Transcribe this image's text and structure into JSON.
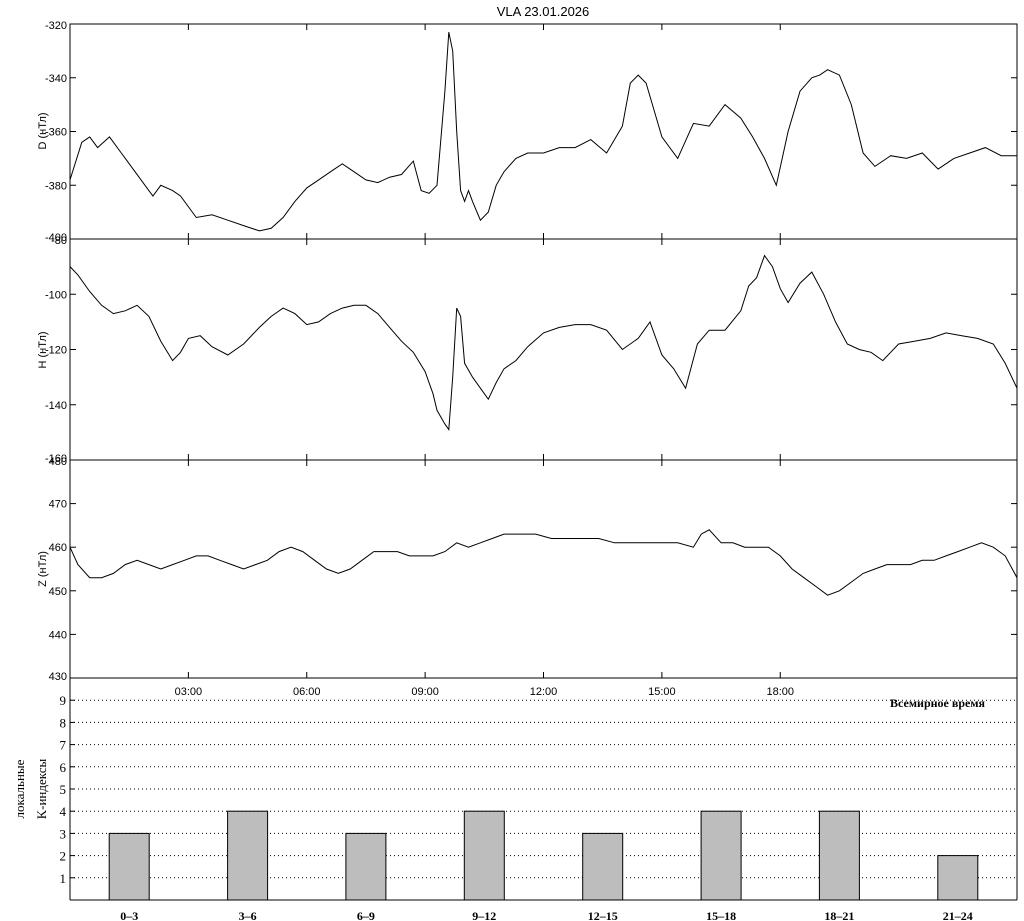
{
  "title": "VLA   23.01.2026",
  "chart_data": [
    {
      "type": "line",
      "ylabel": "D (нТл)",
      "ylim": [
        -400,
        -320
      ],
      "yticks": [
        -400,
        -380,
        -360,
        -340,
        -320
      ],
      "x": [
        0,
        0.3,
        0.5,
        0.7,
        1.0,
        1.3,
        1.6,
        1.9,
        2.1,
        2.3,
        2.6,
        2.8,
        3.2,
        3.6,
        4.0,
        4.4,
        4.8,
        5.1,
        5.4,
        5.7,
        6.0,
        6.3,
        6.6,
        6.9,
        7.2,
        7.5,
        7.8,
        8.1,
        8.4,
        8.7,
        8.9,
        9.1,
        9.3,
        9.5,
        9.6,
        9.7,
        9.8,
        9.9,
        10.0,
        10.1,
        10.2,
        10.4,
        10.6,
        10.8,
        11.0,
        11.3,
        11.6,
        12.0,
        12.4,
        12.8,
        13.2,
        13.6,
        14.0,
        14.2,
        14.4,
        14.6,
        14.8,
        15.0,
        15.4,
        15.8,
        16.2,
        16.6,
        17.0,
        17.3,
        17.6,
        17.9,
        18.2,
        18.5,
        18.8,
        19.0,
        19.2,
        19.5,
        19.8,
        20.1,
        20.4,
        20.8,
        21.2,
        21.6,
        22.0,
        22.4,
        22.8,
        23.2,
        23.6,
        24.0
      ],
      "y": [
        -378,
        -364,
        -362,
        -366,
        -362,
        -368,
        -374,
        -380,
        -384,
        -380,
        -382,
        -384,
        -392,
        -391,
        -393,
        -395,
        -397,
        -396,
        -392,
        -386,
        -381,
        -378,
        -375,
        -372,
        -375,
        -378,
        -379,
        -377,
        -376,
        -371,
        -382,
        -383,
        -380,
        -345,
        -323,
        -330,
        -360,
        -382,
        -386,
        -382,
        -386,
        -393,
        -390,
        -380,
        -375,
        -370,
        -368,
        -368,
        -366,
        -366,
        -363,
        -368,
        -358,
        -342,
        -339,
        -342,
        -352,
        -362,
        -370,
        -357,
        -358,
        -350,
        -355,
        -362,
        -370,
        -380,
        -360,
        -345,
        -340,
        -339,
        -337,
        -339,
        -350,
        -368,
        -373,
        -369,
        -370,
        -368,
        -374,
        -370,
        -368,
        -366,
        -369,
        -369
      ]
    },
    {
      "type": "line",
      "ylabel": "H (нТл)",
      "ylim": [
        -160,
        -80
      ],
      "yticks": [
        -160,
        -140,
        -120,
        -100,
        -80
      ],
      "x": [
        0,
        0.2,
        0.5,
        0.8,
        1.1,
        1.4,
        1.7,
        2.0,
        2.3,
        2.6,
        2.8,
        3.0,
        3.3,
        3.6,
        4.0,
        4.4,
        4.8,
        5.1,
        5.4,
        5.7,
        6.0,
        6.3,
        6.6,
        6.9,
        7.2,
        7.5,
        7.8,
        8.1,
        8.4,
        8.7,
        9.0,
        9.2,
        9.3,
        9.5,
        9.6,
        9.7,
        9.8,
        9.9,
        10.0,
        10.2,
        10.4,
        10.6,
        10.8,
        11.0,
        11.3,
        11.6,
        12.0,
        12.4,
        12.8,
        13.2,
        13.6,
        14.0,
        14.4,
        14.7,
        15.0,
        15.3,
        15.6,
        15.9,
        16.2,
        16.6,
        17.0,
        17.2,
        17.4,
        17.6,
        17.8,
        18.0,
        18.2,
        18.5,
        18.8,
        19.1,
        19.4,
        19.7,
        20.0,
        20.3,
        20.6,
        21.0,
        21.4,
        21.8,
        22.2,
        22.6,
        23.0,
        23.4,
        23.7,
        24.0
      ],
      "y": [
        -90,
        -93,
        -99,
        -104,
        -107,
        -106,
        -104,
        -108,
        -117,
        -124,
        -121,
        -116,
        -115,
        -119,
        -122,
        -118,
        -112,
        -108,
        -105,
        -107,
        -111,
        -110,
        -107,
        -105,
        -104,
        -104,
        -107,
        -112,
        -117,
        -121,
        -128,
        -136,
        -142,
        -147,
        -149,
        -130,
        -105,
        -108,
        -125,
        -130,
        -134,
        -138,
        -132,
        -127,
        -124,
        -119,
        -114,
        -112,
        -111,
        -111,
        -113,
        -120,
        -116,
        -110,
        -122,
        -127,
        -134,
        -118,
        -113,
        -113,
        -106,
        -97,
        -94,
        -86,
        -90,
        -98,
        -103,
        -96,
        -92,
        -100,
        -110,
        -118,
        -120,
        -121,
        -124,
        -118,
        -117,
        -116,
        -114,
        -115,
        -116,
        -118,
        -125,
        -134
      ]
    },
    {
      "type": "line",
      "ylabel": "Z (нТл)",
      "ylim": [
        430,
        480
      ],
      "yticks": [
        430,
        440,
        450,
        460,
        470,
        480
      ],
      "x": [
        0,
        0.2,
        0.5,
        0.8,
        1.1,
        1.4,
        1.7,
        2.0,
        2.3,
        2.6,
        2.9,
        3.2,
        3.5,
        3.8,
        4.1,
        4.4,
        4.7,
        5.0,
        5.3,
        5.6,
        5.9,
        6.2,
        6.5,
        6.8,
        7.1,
        7.4,
        7.7,
        8.0,
        8.3,
        8.6,
        8.9,
        9.2,
        9.5,
        9.8,
        10.1,
        10.4,
        10.7,
        11.0,
        11.4,
        11.8,
        12.2,
        12.6,
        13.0,
        13.4,
        13.8,
        14.2,
        14.6,
        15.0,
        15.4,
        15.8,
        16.0,
        16.2,
        16.5,
        16.8,
        17.1,
        17.4,
        17.7,
        18.0,
        18.3,
        18.6,
        18.9,
        19.2,
        19.5,
        19.8,
        20.1,
        20.4,
        20.7,
        21.0,
        21.3,
        21.6,
        21.9,
        22.2,
        22.5,
        22.8,
        23.1,
        23.4,
        23.7,
        24.0
      ],
      "y": [
        460,
        456,
        453,
        453,
        454,
        456,
        457,
        456,
        455,
        456,
        457,
        458,
        458,
        457,
        456,
        455,
        456,
        457,
        459,
        460,
        459,
        457,
        455,
        454,
        455,
        457,
        459,
        459,
        459,
        458,
        458,
        458,
        459,
        461,
        460,
        461,
        462,
        463,
        463,
        463,
        462,
        462,
        462,
        462,
        461,
        461,
        461,
        461,
        461,
        460,
        463,
        464,
        461,
        461,
        460,
        460,
        460,
        458,
        455,
        453,
        451,
        449,
        450,
        452,
        454,
        455,
        456,
        456,
        456,
        457,
        457,
        458,
        459,
        460,
        461,
        460,
        458,
        453
      ]
    },
    {
      "type": "bar",
      "ylabel_line1": "локальные",
      "ylabel_line2": "K-индексы",
      "ylim": [
        0,
        10
      ],
      "yticks": [
        1,
        2,
        3,
        4,
        5,
        6,
        7,
        8,
        9
      ],
      "categories": [
        "0–3",
        "3–6",
        "6–9",
        "9–12",
        "12–15",
        "15–18",
        "18–21",
        "21–24"
      ],
      "values": [
        3,
        4,
        3,
        4,
        3,
        4,
        4,
        2
      ]
    }
  ],
  "xaxis": {
    "ticks": [
      "03:00",
      "06:00",
      "09:00",
      "12:00",
      "15:00",
      "18:00"
    ],
    "tick_hours": [
      3,
      6,
      9,
      12,
      15,
      18
    ],
    "range_hours": [
      0,
      24
    ],
    "label": "Всемирное время"
  },
  "colors": {
    "bar_fill": "#bdbdbd",
    "line": "#000000"
  }
}
